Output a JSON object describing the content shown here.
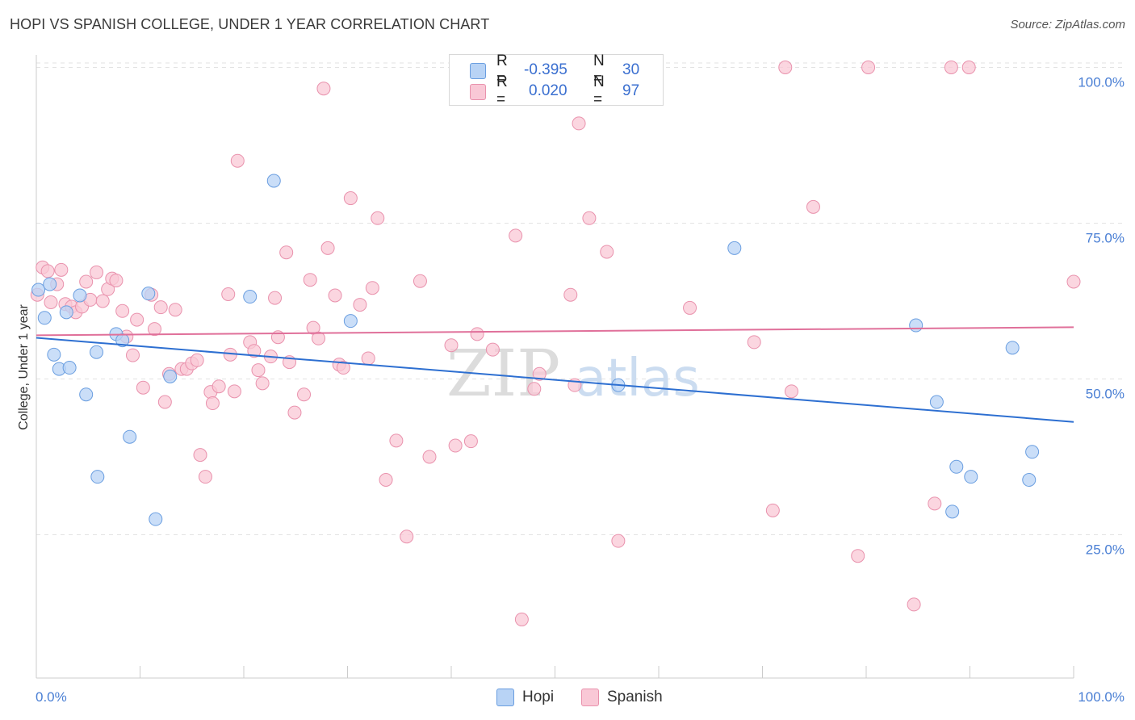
{
  "header": {
    "title": "HOPI VS SPANISH COLLEGE, UNDER 1 YEAR CORRELATION CHART",
    "source": "Source: ZipAtlas.com"
  },
  "legend": {
    "hopi": {
      "r_label": "R =",
      "r_value": "-0.395",
      "n_label": "N =",
      "n_value": "30"
    },
    "spanish": {
      "r_label": "R =",
      "r_value": "0.020",
      "n_label": "N =",
      "n_value": "97"
    }
  },
  "bottom_legend": {
    "hopi": "Hopi",
    "spanish": "Spanish"
  },
  "watermark": {
    "zip": "ZIP",
    "atlas": "atlas"
  },
  "colors": {
    "hopi_fill": "#b8d3f5",
    "hopi_stroke": "#6a9ee0",
    "hopi_line": "#2d6fd1",
    "spanish_fill": "#f9c8d6",
    "spanish_stroke": "#e992ad",
    "spanish_line": "#e0709a",
    "tick_label": "#4a7fd4",
    "grid": "#e2e2e2"
  },
  "chart_data": {
    "type": "scatter",
    "title": "HOPI VS SPANISH COLLEGE, UNDER 1 YEAR CORRELATION CHART",
    "xlabel": "",
    "ylabel": "College, Under 1 year",
    "xlim": [
      0,
      100
    ],
    "ylim": [
      2,
      102
    ],
    "x_tick_labels": [
      "0.0%",
      "100.0%"
    ],
    "y_ticks": [
      25,
      50,
      75,
      100
    ],
    "y_tick_labels": [
      "25.0%",
      "50.0%",
      "75.0%",
      "100.0%"
    ],
    "grid": "horizontal dashed",
    "legend_position": "top-center",
    "series": [
      {
        "name": "Hopi",
        "r": -0.395,
        "n": 30,
        "trend": [
          [
            0,
            56.6
          ],
          [
            100,
            43.1
          ]
        ],
        "points": [
          [
            0.2,
            64.3
          ],
          [
            0.8,
            59.8
          ],
          [
            1.3,
            65.2
          ],
          [
            1.7,
            53.9
          ],
          [
            2.2,
            51.6
          ],
          [
            2.9,
            60.7
          ],
          [
            3.2,
            51.8
          ],
          [
            4.2,
            63.4
          ],
          [
            4.8,
            47.5
          ],
          [
            5.8,
            54.3
          ],
          [
            5.9,
            34.3
          ],
          [
            7.7,
            57.2
          ],
          [
            8.3,
            56.2
          ],
          [
            9.0,
            40.7
          ],
          [
            10.8,
            63.7
          ],
          [
            11.5,
            27.5
          ],
          [
            12.9,
            50.4
          ],
          [
            20.6,
            63.2
          ],
          [
            22.9,
            81.8
          ],
          [
            30.3,
            59.3
          ],
          [
            56.1,
            49.0
          ],
          [
            67.3,
            71.0
          ],
          [
            84.8,
            58.6
          ],
          [
            86.8,
            46.3
          ],
          [
            88.3,
            28.7
          ],
          [
            88.7,
            35.9
          ],
          [
            90.1,
            34.3
          ],
          [
            94.1,
            55.0
          ],
          [
            95.7,
            33.8
          ],
          [
            96.0,
            38.3
          ]
        ]
      },
      {
        "name": "Spanish",
        "r": 0.02,
        "n": 97,
        "trend": [
          [
            0,
            57.0
          ],
          [
            100,
            58.3
          ]
        ],
        "points": [
          [
            0.1,
            63.5
          ],
          [
            0.6,
            67.9
          ],
          [
            1.1,
            67.3
          ],
          [
            1.4,
            62.3
          ],
          [
            2.0,
            65.2
          ],
          [
            2.4,
            67.5
          ],
          [
            2.8,
            62.0
          ],
          [
            3.4,
            61.6
          ],
          [
            3.8,
            60.7
          ],
          [
            4.4,
            61.6
          ],
          [
            4.8,
            65.6
          ],
          [
            5.2,
            62.7
          ],
          [
            5.8,
            67.1
          ],
          [
            6.4,
            62.5
          ],
          [
            6.9,
            64.4
          ],
          [
            7.3,
            66.1
          ],
          [
            7.7,
            65.8
          ],
          [
            8.3,
            60.9
          ],
          [
            8.7,
            56.8
          ],
          [
            9.3,
            53.8
          ],
          [
            9.7,
            59.5
          ],
          [
            10.3,
            48.6
          ],
          [
            11.1,
            63.5
          ],
          [
            11.4,
            58.0
          ],
          [
            12.0,
            61.5
          ],
          [
            12.4,
            46.3
          ],
          [
            12.8,
            50.8
          ],
          [
            13.4,
            61.1
          ],
          [
            14.0,
            51.6
          ],
          [
            14.5,
            51.6
          ],
          [
            15.0,
            52.5
          ],
          [
            15.5,
            53.0
          ],
          [
            15.8,
            37.8
          ],
          [
            16.3,
            34.3
          ],
          [
            16.8,
            47.9
          ],
          [
            17.0,
            46.1
          ],
          [
            17.6,
            48.8
          ],
          [
            18.5,
            63.6
          ],
          [
            18.7,
            53.9
          ],
          [
            19.1,
            48.0
          ],
          [
            19.4,
            85.0
          ],
          [
            20.6,
            55.9
          ],
          [
            21.0,
            54.5
          ],
          [
            21.4,
            51.4
          ],
          [
            21.8,
            49.3
          ],
          [
            22.6,
            53.6
          ],
          [
            23.0,
            63.0
          ],
          [
            23.3,
            56.7
          ],
          [
            24.1,
            70.3
          ],
          [
            24.4,
            52.7
          ],
          [
            24.9,
            44.6
          ],
          [
            25.8,
            47.5
          ],
          [
            26.4,
            65.9
          ],
          [
            26.7,
            58.2
          ],
          [
            27.2,
            56.5
          ],
          [
            27.7,
            96.6
          ],
          [
            28.1,
            71.0
          ],
          [
            28.8,
            63.4
          ],
          [
            29.2,
            52.3
          ],
          [
            29.6,
            51.8
          ],
          [
            30.3,
            79.0
          ],
          [
            31.2,
            61.9
          ],
          [
            32.0,
            53.3
          ],
          [
            32.4,
            64.6
          ],
          [
            32.9,
            75.8
          ],
          [
            33.7,
            33.8
          ],
          [
            34.7,
            40.1
          ],
          [
            35.7,
            24.7
          ],
          [
            37.0,
            65.7
          ],
          [
            37.9,
            37.5
          ],
          [
            40.0,
            55.4
          ],
          [
            40.4,
            39.3
          ],
          [
            41.9,
            40.0
          ],
          [
            42.5,
            57.2
          ],
          [
            44.0,
            54.7
          ],
          [
            46.2,
            73.0
          ],
          [
            46.8,
            11.4
          ],
          [
            48.0,
            48.4
          ],
          [
            48.5,
            50.8
          ],
          [
            51.5,
            63.5
          ],
          [
            51.9,
            49.0
          ],
          [
            52.3,
            91.0
          ],
          [
            53.3,
            75.8
          ],
          [
            55.0,
            70.4
          ],
          [
            56.1,
            24.0
          ],
          [
            63.0,
            61.4
          ],
          [
            69.2,
            55.9
          ],
          [
            71.0,
            28.9
          ],
          [
            72.2,
            100.0
          ],
          [
            72.8,
            48.0
          ],
          [
            74.9,
            77.6
          ],
          [
            79.2,
            21.6
          ],
          [
            80.2,
            100.0
          ],
          [
            84.6,
            13.8
          ],
          [
            86.6,
            30.0
          ],
          [
            88.2,
            100.0
          ],
          [
            89.9,
            100.0
          ],
          [
            100.0,
            65.6
          ]
        ]
      }
    ]
  }
}
